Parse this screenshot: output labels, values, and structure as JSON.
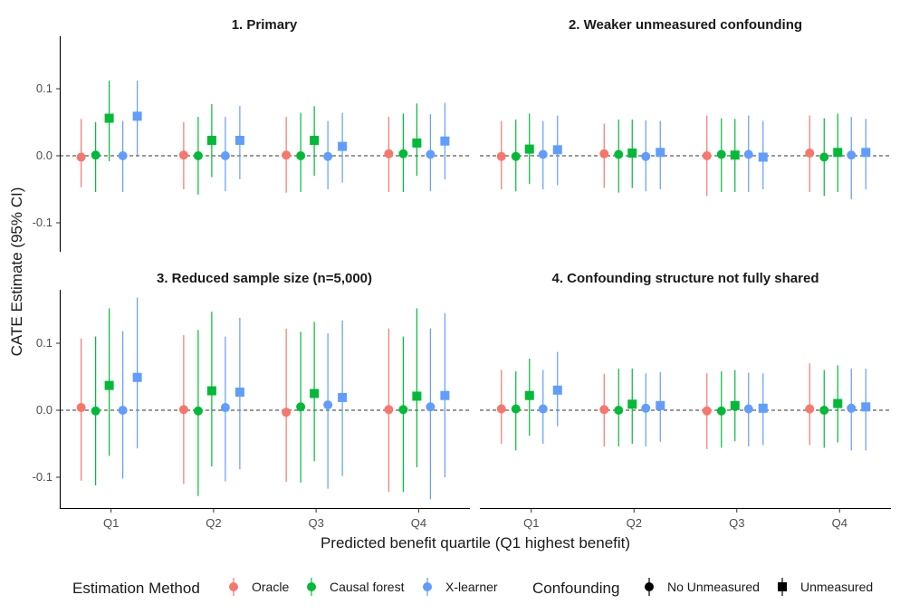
{
  "chart_data": {
    "type": "scatter",
    "ylabel": "CATE Estimate (95% CI)",
    "xlabel": "Predicted benefit quartile (Q1 highest benefit)",
    "categories": [
      "Q1",
      "Q2",
      "Q3",
      "Q4"
    ],
    "ylim": [
      -0.145,
      0.18
    ],
    "yticks": [
      -0.1,
      0.0,
      0.1
    ],
    "ytick_labels": [
      "-0.1",
      "0.0",
      "0.1"
    ],
    "reference_line": 0,
    "colors": {
      "Oracle": "#F8766D",
      "Causal forest": "#00BA38",
      "X-learner": "#619CFF"
    },
    "legend": {
      "method_title": "Estimation Method",
      "methods": [
        "Oracle",
        "Causal forest",
        "X-learner"
      ],
      "confounding_title": "Confounding",
      "confounding": [
        "No Unmeasured",
        "Unmeasured"
      ]
    },
    "panels": [
      {
        "title": "1. Primary",
        "points": [
          {
            "q": "Q1",
            "method": "Oracle",
            "conf": "No Unmeasured",
            "est": -0.002,
            "lo": -0.047,
            "hi": 0.055
          },
          {
            "q": "Q1",
            "method": "Causal forest",
            "conf": "No Unmeasured",
            "est": 0.001,
            "lo": -0.054,
            "hi": 0.05
          },
          {
            "q": "Q1",
            "method": "Causal forest",
            "conf": "Unmeasured",
            "est": 0.056,
            "lo": -0.008,
            "hi": 0.112
          },
          {
            "q": "Q1",
            "method": "X-learner",
            "conf": "No Unmeasured",
            "est": 0.0,
            "lo": -0.054,
            "hi": 0.052
          },
          {
            "q": "Q1",
            "method": "X-learner",
            "conf": "Unmeasured",
            "est": 0.059,
            "lo": 0.001,
            "hi": 0.112
          },
          {
            "q": "Q2",
            "method": "Oracle",
            "conf": "No Unmeasured",
            "est": 0.001,
            "lo": -0.05,
            "hi": 0.05
          },
          {
            "q": "Q2",
            "method": "Causal forest",
            "conf": "No Unmeasured",
            "est": 0.0,
            "lo": -0.058,
            "hi": 0.058
          },
          {
            "q": "Q2",
            "method": "Causal forest",
            "conf": "Unmeasured",
            "est": 0.023,
            "lo": -0.032,
            "hi": 0.077
          },
          {
            "q": "Q2",
            "method": "X-learner",
            "conf": "No Unmeasured",
            "est": 0.0,
            "lo": -0.053,
            "hi": 0.058
          },
          {
            "q": "Q2",
            "method": "X-learner",
            "conf": "Unmeasured",
            "est": 0.023,
            "lo": -0.035,
            "hi": 0.074
          },
          {
            "q": "Q3",
            "method": "Oracle",
            "conf": "No Unmeasured",
            "est": 0.001,
            "lo": -0.055,
            "hi": 0.058
          },
          {
            "q": "Q3",
            "method": "Causal forest",
            "conf": "No Unmeasured",
            "est": 0.0,
            "lo": -0.054,
            "hi": 0.064
          },
          {
            "q": "Q3",
            "method": "Causal forest",
            "conf": "Unmeasured",
            "est": 0.023,
            "lo": -0.03,
            "hi": 0.074
          },
          {
            "q": "Q3",
            "method": "X-learner",
            "conf": "No Unmeasured",
            "est": -0.001,
            "lo": -0.05,
            "hi": 0.052
          },
          {
            "q": "Q3",
            "method": "X-learner",
            "conf": "Unmeasured",
            "est": 0.014,
            "lo": -0.04,
            "hi": 0.064
          },
          {
            "q": "Q4",
            "method": "Oracle",
            "conf": "No Unmeasured",
            "est": 0.003,
            "lo": -0.054,
            "hi": 0.058
          },
          {
            "q": "Q4",
            "method": "Causal forest",
            "conf": "No Unmeasured",
            "est": 0.003,
            "lo": -0.054,
            "hi": 0.063
          },
          {
            "q": "Q4",
            "method": "Causal forest",
            "conf": "Unmeasured",
            "est": 0.019,
            "lo": -0.03,
            "hi": 0.078
          },
          {
            "q": "Q4",
            "method": "X-learner",
            "conf": "No Unmeasured",
            "est": 0.002,
            "lo": -0.053,
            "hi": 0.062
          },
          {
            "q": "Q4",
            "method": "X-learner",
            "conf": "Unmeasured",
            "est": 0.022,
            "lo": -0.035,
            "hi": 0.079
          }
        ]
      },
      {
        "title": "2. Weaker unmeasured confounding",
        "points": [
          {
            "q": "Q1",
            "method": "Oracle",
            "conf": "No Unmeasured",
            "est": -0.001,
            "lo": -0.05,
            "hi": 0.052
          },
          {
            "q": "Q1",
            "method": "Causal forest",
            "conf": "No Unmeasured",
            "est": -0.001,
            "lo": -0.053,
            "hi": 0.054
          },
          {
            "q": "Q1",
            "method": "Causal forest",
            "conf": "Unmeasured",
            "est": 0.01,
            "lo": -0.042,
            "hi": 0.063
          },
          {
            "q": "Q1",
            "method": "X-learner",
            "conf": "No Unmeasured",
            "est": 0.002,
            "lo": -0.05,
            "hi": 0.052
          },
          {
            "q": "Q1",
            "method": "X-learner",
            "conf": "Unmeasured",
            "est": 0.009,
            "lo": -0.044,
            "hi": 0.06
          },
          {
            "q": "Q2",
            "method": "Oracle",
            "conf": "No Unmeasured",
            "est": 0.003,
            "lo": -0.048,
            "hi": 0.048
          },
          {
            "q": "Q2",
            "method": "Causal forest",
            "conf": "No Unmeasured",
            "est": 0.002,
            "lo": -0.055,
            "hi": 0.054
          },
          {
            "q": "Q2",
            "method": "Causal forest",
            "conf": "Unmeasured",
            "est": 0.004,
            "lo": -0.048,
            "hi": 0.054
          },
          {
            "q": "Q2",
            "method": "X-learner",
            "conf": "No Unmeasured",
            "est": -0.001,
            "lo": -0.053,
            "hi": 0.053
          },
          {
            "q": "Q2",
            "method": "X-learner",
            "conf": "Unmeasured",
            "est": 0.005,
            "lo": -0.05,
            "hi": 0.052
          },
          {
            "q": "Q3",
            "method": "Oracle",
            "conf": "No Unmeasured",
            "est": 0.0,
            "lo": -0.06,
            "hi": 0.06
          },
          {
            "q": "Q3",
            "method": "Causal forest",
            "conf": "No Unmeasured",
            "est": 0.002,
            "lo": -0.054,
            "hi": 0.056
          },
          {
            "q": "Q3",
            "method": "Causal forest",
            "conf": "Unmeasured",
            "est": 0.001,
            "lo": -0.054,
            "hi": 0.055
          },
          {
            "q": "Q3",
            "method": "X-learner",
            "conf": "No Unmeasured",
            "est": 0.002,
            "lo": -0.054,
            "hi": 0.06
          },
          {
            "q": "Q3",
            "method": "X-learner",
            "conf": "Unmeasured",
            "est": -0.002,
            "lo": -0.05,
            "hi": 0.052
          },
          {
            "q": "Q4",
            "method": "Oracle",
            "conf": "No Unmeasured",
            "est": 0.004,
            "lo": -0.054,
            "hi": 0.06
          },
          {
            "q": "Q4",
            "method": "Causal forest",
            "conf": "No Unmeasured",
            "est": -0.002,
            "lo": -0.06,
            "hi": 0.056
          },
          {
            "q": "Q4",
            "method": "Causal forest",
            "conf": "Unmeasured",
            "est": 0.005,
            "lo": -0.054,
            "hi": 0.063
          },
          {
            "q": "Q4",
            "method": "X-learner",
            "conf": "No Unmeasured",
            "est": 0.001,
            "lo": -0.065,
            "hi": 0.058
          },
          {
            "q": "Q4",
            "method": "X-learner",
            "conf": "Unmeasured",
            "est": 0.005,
            "lo": -0.05,
            "hi": 0.055
          }
        ]
      },
      {
        "title": "3. Reduced sample size (n=5,000)",
        "points": [
          {
            "q": "Q1",
            "method": "Oracle",
            "conf": "No Unmeasured",
            "est": 0.004,
            "lo": -0.105,
            "hi": 0.107
          },
          {
            "q": "Q1",
            "method": "Causal forest",
            "conf": "No Unmeasured",
            "est": -0.001,
            "lo": -0.112,
            "hi": 0.11
          },
          {
            "q": "Q1",
            "method": "Causal forest",
            "conf": "Unmeasured",
            "est": 0.037,
            "lo": -0.068,
            "hi": 0.152
          },
          {
            "q": "Q1",
            "method": "X-learner",
            "conf": "No Unmeasured",
            "est": 0.0,
            "lo": -0.102,
            "hi": 0.118
          },
          {
            "q": "Q1",
            "method": "X-learner",
            "conf": "Unmeasured",
            "est": 0.049,
            "lo": -0.057,
            "hi": 0.168
          },
          {
            "q": "Q2",
            "method": "Oracle",
            "conf": "No Unmeasured",
            "est": 0.001,
            "lo": -0.11,
            "hi": 0.112
          },
          {
            "q": "Q2",
            "method": "Causal forest",
            "conf": "No Unmeasured",
            "est": -0.001,
            "lo": -0.128,
            "hi": 0.12
          },
          {
            "q": "Q2",
            "method": "Causal forest",
            "conf": "Unmeasured",
            "est": 0.029,
            "lo": -0.084,
            "hi": 0.147
          },
          {
            "q": "Q2",
            "method": "X-learner",
            "conf": "No Unmeasured",
            "est": 0.004,
            "lo": -0.106,
            "hi": 0.11
          },
          {
            "q": "Q2",
            "method": "X-learner",
            "conf": "Unmeasured",
            "est": 0.027,
            "lo": -0.088,
            "hi": 0.138
          },
          {
            "q": "Q3",
            "method": "Oracle",
            "conf": "No Unmeasured",
            "est": -0.003,
            "lo": -0.107,
            "hi": 0.122
          },
          {
            "q": "Q3",
            "method": "Causal forest",
            "conf": "No Unmeasured",
            "est": 0.005,
            "lo": -0.108,
            "hi": 0.117
          },
          {
            "q": "Q3",
            "method": "Causal forest",
            "conf": "Unmeasured",
            "est": 0.025,
            "lo": -0.076,
            "hi": 0.132
          },
          {
            "q": "Q3",
            "method": "X-learner",
            "conf": "No Unmeasured",
            "est": 0.008,
            "lo": -0.117,
            "hi": 0.115
          },
          {
            "q": "Q3",
            "method": "X-learner",
            "conf": "Unmeasured",
            "est": 0.019,
            "lo": -0.098,
            "hi": 0.134
          },
          {
            "q": "Q4",
            "method": "Oracle",
            "conf": "No Unmeasured",
            "est": 0.001,
            "lo": -0.122,
            "hi": 0.122
          },
          {
            "q": "Q4",
            "method": "Causal forest",
            "conf": "No Unmeasured",
            "est": 0.001,
            "lo": -0.122,
            "hi": 0.11
          },
          {
            "q": "Q4",
            "method": "Causal forest",
            "conf": "Unmeasured",
            "est": 0.021,
            "lo": -0.085,
            "hi": 0.152
          },
          {
            "q": "Q4",
            "method": "X-learner",
            "conf": "No Unmeasured",
            "est": 0.005,
            "lo": -0.133,
            "hi": 0.122
          },
          {
            "q": "Q4",
            "method": "X-learner",
            "conf": "Unmeasured",
            "est": 0.022,
            "lo": -0.1,
            "hi": 0.145
          }
        ]
      },
      {
        "title": "4. Confounding structure not fully shared",
        "points": [
          {
            "q": "Q1",
            "method": "Oracle",
            "conf": "No Unmeasured",
            "est": 0.002,
            "lo": -0.05,
            "hi": 0.06
          },
          {
            "q": "Q1",
            "method": "Causal forest",
            "conf": "No Unmeasured",
            "est": 0.002,
            "lo": -0.06,
            "hi": 0.058
          },
          {
            "q": "Q1",
            "method": "Causal forest",
            "conf": "Unmeasured",
            "est": 0.022,
            "lo": -0.038,
            "hi": 0.077
          },
          {
            "q": "Q1",
            "method": "X-learner",
            "conf": "No Unmeasured",
            "est": 0.002,
            "lo": -0.05,
            "hi": 0.06
          },
          {
            "q": "Q1",
            "method": "X-learner",
            "conf": "Unmeasured",
            "est": 0.03,
            "lo": -0.024,
            "hi": 0.087
          },
          {
            "q": "Q2",
            "method": "Oracle",
            "conf": "No Unmeasured",
            "est": 0.001,
            "lo": -0.054,
            "hi": 0.054
          },
          {
            "q": "Q2",
            "method": "Causal forest",
            "conf": "No Unmeasured",
            "est": 0.0,
            "lo": -0.054,
            "hi": 0.062
          },
          {
            "q": "Q2",
            "method": "Causal forest",
            "conf": "Unmeasured",
            "est": 0.009,
            "lo": -0.05,
            "hi": 0.062
          },
          {
            "q": "Q2",
            "method": "X-learner",
            "conf": "No Unmeasured",
            "est": 0.003,
            "lo": -0.054,
            "hi": 0.055
          },
          {
            "q": "Q2",
            "method": "X-learner",
            "conf": "Unmeasured",
            "est": 0.007,
            "lo": -0.047,
            "hi": 0.057
          },
          {
            "q": "Q3",
            "method": "Oracle",
            "conf": "No Unmeasured",
            "est": -0.001,
            "lo": -0.058,
            "hi": 0.055
          },
          {
            "q": "Q3",
            "method": "Causal forest",
            "conf": "No Unmeasured",
            "est": -0.001,
            "lo": -0.056,
            "hi": 0.058
          },
          {
            "q": "Q3",
            "method": "Causal forest",
            "conf": "Unmeasured",
            "est": 0.007,
            "lo": -0.046,
            "hi": 0.06
          },
          {
            "q": "Q3",
            "method": "X-learner",
            "conf": "No Unmeasured",
            "est": 0.002,
            "lo": -0.054,
            "hi": 0.056
          },
          {
            "q": "Q3",
            "method": "X-learner",
            "conf": "Unmeasured",
            "est": 0.003,
            "lo": -0.052,
            "hi": 0.055
          },
          {
            "q": "Q4",
            "method": "Oracle",
            "conf": "No Unmeasured",
            "est": 0.002,
            "lo": -0.052,
            "hi": 0.07
          },
          {
            "q": "Q4",
            "method": "Causal forest",
            "conf": "No Unmeasured",
            "est": 0.0,
            "lo": -0.056,
            "hi": 0.06
          },
          {
            "q": "Q4",
            "method": "Causal forest",
            "conf": "Unmeasured",
            "est": 0.01,
            "lo": -0.048,
            "hi": 0.067
          },
          {
            "q": "Q4",
            "method": "X-learner",
            "conf": "No Unmeasured",
            "est": 0.003,
            "lo": -0.06,
            "hi": 0.062
          },
          {
            "q": "Q4",
            "method": "X-learner",
            "conf": "Unmeasured",
            "est": 0.005,
            "lo": -0.06,
            "hi": 0.062
          }
        ]
      }
    ]
  }
}
